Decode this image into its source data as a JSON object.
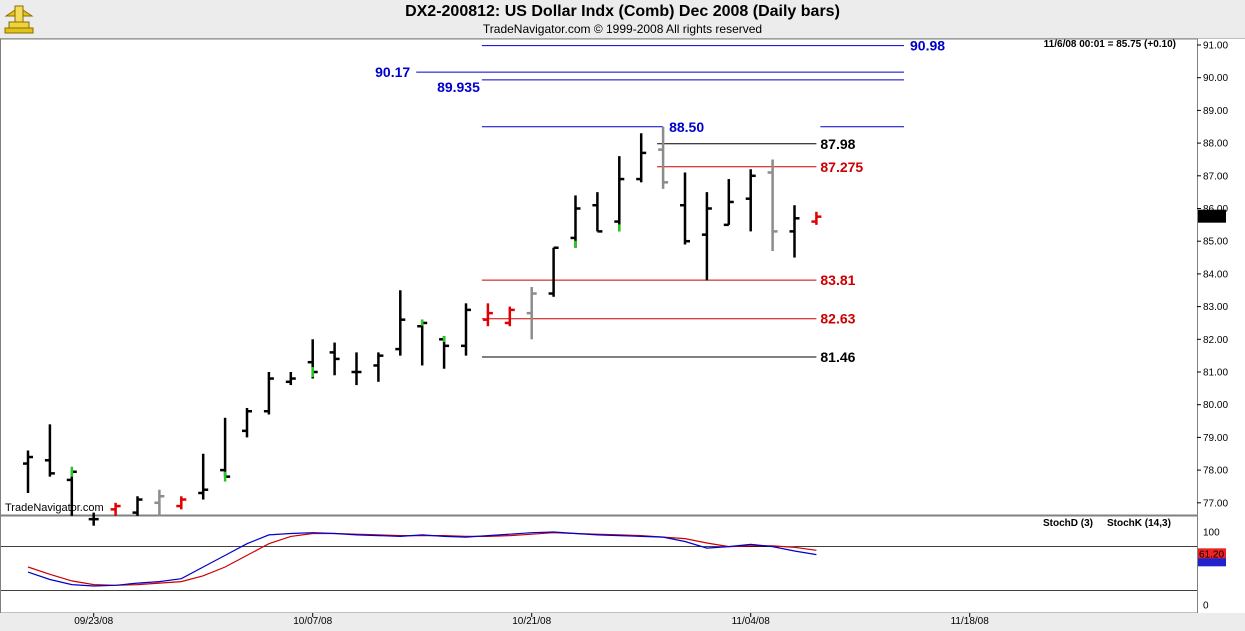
{
  "header": {
    "title": "DX2-200812:  US Dollar Indx (Comb) Dec 2008  (Daily bars)",
    "subtitle": "TradeNavigator.com © 1999-2008 All rights reserved"
  },
  "chart_data": {
    "type": "ohlc",
    "quote": "11/6/08 00:01 = 85.75 (+0.10)",
    "watermark": "TradeNavigator.com",
    "last_price": "85.75",
    "price_axis": {
      "min": 76.6,
      "max": 91.2,
      "ticks": [
        "77.00",
        "78.00",
        "79.00",
        "80.00",
        "81.00",
        "82.00",
        "83.00",
        "84.00",
        "85.00",
        "86.00",
        "87.00",
        "88.00",
        "89.00",
        "90.00",
        "91.00"
      ]
    },
    "x_ticks": [
      {
        "label": "09/23/08",
        "bar": 3
      },
      {
        "label": "10/07/08",
        "bar": 13
      },
      {
        "label": "10/21/08",
        "bar": 23
      },
      {
        "label": "11/04/08",
        "bar": 33
      },
      {
        "label": "11/18/08",
        "bar": 43
      }
    ],
    "bars": [
      {
        "o": 78.2,
        "h": 78.6,
        "l": 77.3,
        "c": 78.4,
        "color": "black"
      },
      {
        "o": 78.3,
        "h": 79.4,
        "l": 77.8,
        "c": 77.9,
        "color": "black"
      },
      {
        "o": 77.7,
        "h": 78.0,
        "l": 76.6,
        "c": 77.95,
        "color": "black",
        "close_color": "green"
      },
      {
        "o": 76.5,
        "h": 76.7,
        "l": 76.3,
        "c": 76.5,
        "color": "black"
      },
      {
        "o": 76.8,
        "h": 77.0,
        "l": 76.6,
        "c": 76.9,
        "color": "red"
      },
      {
        "o": 76.7,
        "h": 77.2,
        "l": 76.6,
        "c": 77.1,
        "color": "black"
      },
      {
        "o": 77.0,
        "h": 77.4,
        "l": 76.6,
        "c": 77.2,
        "color": "gray"
      },
      {
        "o": 76.9,
        "h": 77.2,
        "l": 76.8,
        "c": 77.1,
        "color": "red"
      },
      {
        "o": 77.3,
        "h": 78.5,
        "l": 77.1,
        "c": 77.4,
        "color": "black"
      },
      {
        "o": 78.0,
        "h": 79.6,
        "l": 77.8,
        "c": 77.8,
        "color": "black",
        "close_color": "green"
      },
      {
        "o": 79.2,
        "h": 79.9,
        "l": 79.0,
        "c": 79.8,
        "color": "black"
      },
      {
        "o": 79.8,
        "h": 81.0,
        "l": 79.7,
        "c": 80.8,
        "color": "black"
      },
      {
        "o": 80.7,
        "h": 81.0,
        "l": 80.6,
        "c": 80.8,
        "color": "black"
      },
      {
        "o": 81.3,
        "h": 82.0,
        "l": 80.8,
        "c": 81.0,
        "color": "black",
        "close_color": "green"
      },
      {
        "o": 81.6,
        "h": 81.9,
        "l": 80.9,
        "c": 81.4,
        "color": "black"
      },
      {
        "o": 81.0,
        "h": 81.6,
        "l": 80.6,
        "c": 81.0,
        "color": "black"
      },
      {
        "o": 81.2,
        "h": 81.6,
        "l": 80.7,
        "c": 81.5,
        "color": "black"
      },
      {
        "o": 81.7,
        "h": 83.5,
        "l": 81.5,
        "c": 82.6,
        "color": "black"
      },
      {
        "o": 82.4,
        "h": 82.6,
        "l": 81.2,
        "c": 82.5,
        "color": "black",
        "high_color": "green"
      },
      {
        "o": 82.0,
        "h": 82.1,
        "l": 81.1,
        "c": 81.8,
        "color": "black",
        "high_color": "green"
      },
      {
        "o": 81.8,
        "h": 83.1,
        "l": 81.5,
        "c": 82.9,
        "color": "black"
      },
      {
        "o": 82.6,
        "h": 83.1,
        "l": 82.4,
        "c": 82.8,
        "color": "red"
      },
      {
        "o": 82.5,
        "h": 83.0,
        "l": 82.4,
        "c": 82.9,
        "color": "red"
      },
      {
        "o": 82.8,
        "h": 83.6,
        "l": 82.0,
        "c": 83.4,
        "color": "gray"
      },
      {
        "o": 83.4,
        "h": 84.8,
        "l": 83.3,
        "c": 84.8,
        "color": "black"
      },
      {
        "o": 85.1,
        "h": 86.4,
        "l": 84.8,
        "c": 86.0,
        "color": "black",
        "low_color": "green"
      },
      {
        "o": 86.1,
        "h": 86.5,
        "l": 85.3,
        "c": 85.3,
        "color": "black"
      },
      {
        "o": 85.6,
        "h": 87.6,
        "l": 85.3,
        "c": 86.9,
        "color": "black",
        "low_color": "green"
      },
      {
        "o": 86.9,
        "h": 88.3,
        "l": 86.8,
        "c": 87.7,
        "color": "black"
      },
      {
        "o": 87.8,
        "h": 88.5,
        "l": 86.6,
        "c": 86.8,
        "color": "gray"
      },
      {
        "o": 86.1,
        "h": 87.1,
        "l": 84.9,
        "c": 85.0,
        "color": "black"
      },
      {
        "o": 85.2,
        "h": 86.5,
        "l": 83.8,
        "c": 86.0,
        "color": "black"
      },
      {
        "o": 85.5,
        "h": 86.9,
        "l": 85.5,
        "c": 86.2,
        "color": "black"
      },
      {
        "o": 86.3,
        "h": 87.2,
        "l": 85.3,
        "c": 87.0,
        "color": "black"
      },
      {
        "o": 87.1,
        "h": 87.5,
        "l": 84.7,
        "c": 85.3,
        "color": "gray"
      },
      {
        "o": 85.3,
        "h": 86.1,
        "l": 84.5,
        "c": 85.7,
        "color": "black"
      },
      {
        "o": 85.6,
        "h": 85.9,
        "l": 85.5,
        "c": 85.75,
        "color": "red"
      }
    ],
    "levels": [
      {
        "value": 90.98,
        "label": "90.98",
        "color": "#0000cc",
        "start_bar": 21,
        "end_bar": 40,
        "label_side": "right"
      },
      {
        "value": 90.17,
        "label": "90.17",
        "color": "#0000cc",
        "start_bar": 18,
        "end_bar": 40,
        "label_side": "left"
      },
      {
        "value": 89.935,
        "label": "89.935",
        "color": "#0000cc",
        "start_bar": 21,
        "end_bar": 40,
        "label_side": "left-inner"
      },
      {
        "value": 88.5,
        "label": "88.50",
        "color": "#0000cc",
        "start_bar": 21,
        "end_bar": 29,
        "label_side": "right",
        "extra_segment": [
          36,
          40
        ]
      },
      {
        "value": 87.98,
        "label": "87.98",
        "color": "#000000",
        "start_bar": 29,
        "end_bar": 36,
        "label_side": "right-near"
      },
      {
        "value": 87.275,
        "label": "87.275",
        "color": "#cc0000",
        "start_bar": 29,
        "end_bar": 36,
        "label_side": "right-near"
      },
      {
        "value": 83.81,
        "label": "83.81",
        "color": "#cc0000",
        "start_bar": 21,
        "end_bar": 36,
        "label_side": "right-near"
      },
      {
        "value": 82.63,
        "label": "82.63",
        "color": "#cc0000",
        "start_bar": 21,
        "end_bar": 36,
        "label_side": "right-near"
      },
      {
        "value": 81.46,
        "label": "81.46",
        "color": "#000000",
        "start_bar": 21,
        "end_bar": 36,
        "label_side": "right-near"
      }
    ],
    "oscillator": {
      "legend": [
        {
          "name": "StochD (3)",
          "color": "#cc0000"
        },
        {
          "name": "StochK (14,3)",
          "color": "#0000cc"
        }
      ],
      "ticks": [
        "100",
        "0"
      ],
      "last_value": "61.20",
      "upper_band": 80,
      "lower_band": 20,
      "stoch_k": [
        45,
        35,
        28,
        26,
        27,
        30,
        32,
        36,
        52,
        68,
        84,
        96,
        98,
        99,
        98,
        96,
        95,
        94,
        96,
        94,
        93,
        95,
        97,
        99,
        100,
        98,
        96,
        95,
        94,
        93,
        87,
        78,
        80,
        83,
        80,
        74,
        69
      ],
      "stoch_d": [
        52,
        42,
        33,
        28,
        27,
        28,
        30,
        32,
        40,
        52,
        68,
        84,
        94,
        98,
        98,
        97,
        96,
        95,
        95,
        95,
        94,
        94,
        95,
        97,
        99,
        98,
        97,
        96,
        95,
        93,
        91,
        85,
        80,
        81,
        81,
        79,
        75
      ]
    }
  }
}
